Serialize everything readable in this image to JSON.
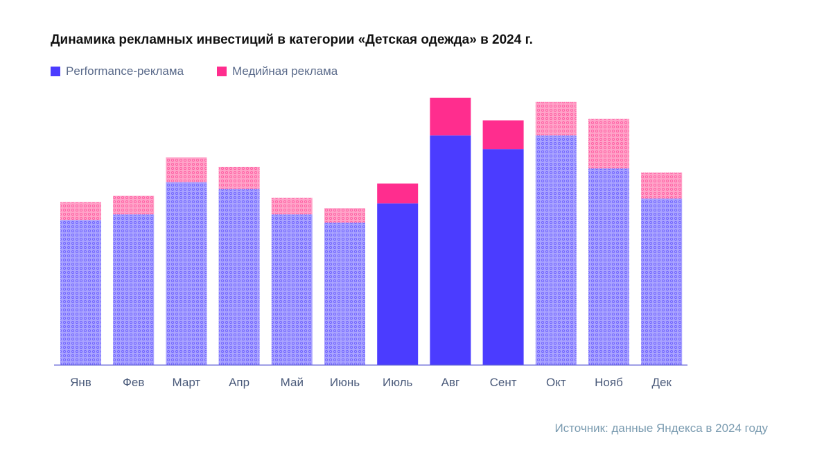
{
  "chart_data": {
    "type": "bar",
    "stacked": true,
    "title": "Динамика рекламных инвестиций в категории «Детская одежда» в 2024 г.",
    "xlabel": "",
    "ylabel": "",
    "ylim": [
      0,
      400
    ],
    "grid": false,
    "legend_placement": "top-left",
    "categories": [
      "Янв",
      "Фев",
      "Март",
      "Апр",
      "Май",
      "Июнь",
      "Июль",
      "Авг",
      "Сент",
      "Окт",
      "Нояб",
      "Дек"
    ],
    "highlighted": [
      false,
      false,
      false,
      false,
      false,
      false,
      true,
      true,
      true,
      false,
      false,
      false
    ],
    "series": [
      {
        "name": "Performance-реклама",
        "color": "#4b3cff",
        "values": [
          211,
          219,
          266,
          256,
          219,
          207,
          235,
          334,
          314,
          334,
          286,
          242
        ]
      },
      {
        "name": "Медийная реклама",
        "color": "#ff2d8e",
        "values": [
          26,
          27,
          36,
          32,
          24,
          21,
          29,
          55,
          42,
          49,
          72,
          38
        ]
      }
    ]
  },
  "source": "Источник: данные Яндекса в 2024 году"
}
